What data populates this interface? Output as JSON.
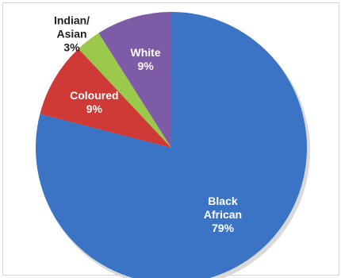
{
  "chart_data": {
    "type": "pie",
    "title": "",
    "start_angle_deg": 0,
    "direction": "clockwise",
    "categories": [
      "Black African",
      "Coloured",
      "Indian/ Asian",
      "White"
    ],
    "values": [
      79,
      9,
      3,
      9
    ],
    "colors": [
      "#3b74c4",
      "#cf3a37",
      "#9bc94c",
      "#7e5ba6"
    ],
    "labels": [
      {
        "lines": [
          "Black",
          "African",
          "79%"
        ],
        "color": "#ffffff"
      },
      {
        "lines": [
          "Coloured",
          "9%"
        ],
        "color": "#ffffff"
      },
      {
        "lines": [
          "Indian/",
          "Asian",
          "3%"
        ],
        "color": "#222222"
      },
      {
        "lines": [
          "White",
          "9%"
        ],
        "color": "#ffffff"
      }
    ],
    "legend": "none"
  }
}
